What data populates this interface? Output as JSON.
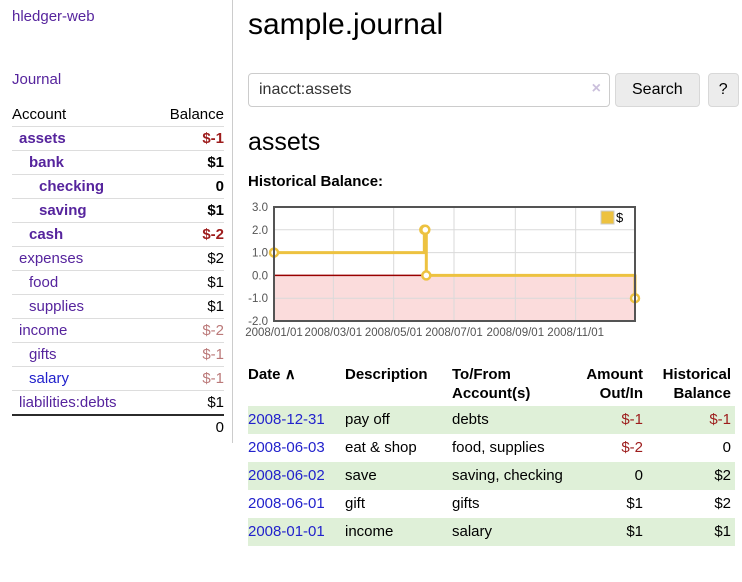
{
  "sidebar": {
    "app_title": "hledger-web",
    "journal_label": "Journal",
    "accounts_header": {
      "account": "Account",
      "balance": "Balance"
    },
    "accounts": [
      {
        "name": "assets",
        "balance": "$-1",
        "indent": 1,
        "bold": true,
        "link_color": "purple",
        "balance_color": "darkred"
      },
      {
        "name": "bank",
        "balance": "$1",
        "indent": 2,
        "bold": true,
        "link_color": "purple",
        "balance_color": "black"
      },
      {
        "name": "checking",
        "balance": "0",
        "indent": 3,
        "bold": true,
        "link_color": "purple",
        "balance_color": "black"
      },
      {
        "name": "saving",
        "balance": "$1",
        "indent": 3,
        "bold": true,
        "link_color": "purple",
        "balance_color": "black"
      },
      {
        "name": "cash",
        "balance": "$-2",
        "indent": 2,
        "bold": true,
        "link_color": "purple",
        "balance_color": "darkred"
      },
      {
        "name": "expenses",
        "balance": "$2",
        "indent": 1,
        "bold": false,
        "link_color": "purple",
        "balance_color": "black"
      },
      {
        "name": "food",
        "balance": "$1",
        "indent": 2,
        "bold": false,
        "link_color": "purple",
        "balance_color": "black"
      },
      {
        "name": "supplies",
        "balance": "$1",
        "indent": 2,
        "bold": false,
        "link_color": "purple",
        "balance_color": "black"
      },
      {
        "name": "income",
        "balance": "$-2",
        "indent": 1,
        "bold": false,
        "link_color": "purple",
        "balance_color": "rose"
      },
      {
        "name": "gifts",
        "balance": "$-1",
        "indent": 2,
        "bold": false,
        "link_color": "purple",
        "balance_color": "rose"
      },
      {
        "name": "salary",
        "balance": "$-1",
        "indent": 2,
        "bold": false,
        "link_color": "blue",
        "balance_color": "rose"
      },
      {
        "name": "liabilities:debts",
        "balance": "$1",
        "indent": 1,
        "bold": false,
        "link_color": "purple",
        "balance_color": "black"
      }
    ],
    "total": "0"
  },
  "main": {
    "title": "sample.journal",
    "search": {
      "value": "inacct:assets",
      "clear_icon": "×",
      "button_label": "Search",
      "help_label": "?"
    },
    "account_heading": "assets",
    "chart_label": "Historical Balance:"
  },
  "chart_data": {
    "type": "line",
    "title": "Historical Balance",
    "step": true,
    "series": [
      {
        "name": "$",
        "color": "#edc240",
        "points": [
          [
            "2008-01-01",
            1
          ],
          [
            "2008-06-01",
            2
          ],
          [
            "2008-06-02",
            2
          ],
          [
            "2008-06-03",
            0
          ],
          [
            "2008-12-31",
            -1
          ]
        ]
      }
    ],
    "xlim": [
      "2008-01-01",
      "2008-12-31"
    ],
    "ylim": [
      -2,
      3
    ],
    "x_ticks": [
      {
        "date": "2008-01-01",
        "label": "2008/01/01"
      },
      {
        "date": "2008-03-01",
        "label": "2008/03/01"
      },
      {
        "date": "2008-05-01",
        "label": "2008/05/01"
      },
      {
        "date": "2008-07-01",
        "label": "2008/07/01"
      },
      {
        "date": "2008-09-01",
        "label": "2008/09/01"
      },
      {
        "date": "2008-11-01",
        "label": "2008/11/01"
      }
    ],
    "y_ticks": [
      {
        "value": 3,
        "label": "3.0"
      },
      {
        "value": 2,
        "label": "2.0"
      },
      {
        "value": 1,
        "label": "1.0"
      },
      {
        "value": 0,
        "label": "0.0"
      },
      {
        "value": -1,
        "label": "-1.0"
      },
      {
        "value": -2,
        "label": "-2.0"
      }
    ],
    "legend": {
      "label": "$",
      "position": "top-right"
    },
    "grid_on": true,
    "negative_region_color": "#fbdcdc",
    "zero_line_color": "#990000",
    "grid_color": "#dadada",
    "border_color": "#545454",
    "axis_label_color": "#545454"
  },
  "register": {
    "headers": [
      {
        "label": "Date",
        "sort_icon": "∧"
      },
      {
        "label": "Description"
      },
      {
        "label": "To/From Account(s)"
      },
      {
        "label": "Amount Out/In"
      },
      {
        "label": "Historical Balance"
      }
    ],
    "rows": [
      {
        "date": "2008-12-31",
        "description": "pay off",
        "accounts": "debts",
        "amount": "$-1",
        "amount_color": "darkred",
        "balance": "$-1",
        "balance_color": "darkred"
      },
      {
        "date": "2008-06-03",
        "description": "eat & shop",
        "accounts": "food, supplies",
        "amount": "$-2",
        "amount_color": "darkred",
        "balance": "0",
        "balance_color": "black"
      },
      {
        "date": "2008-06-02",
        "description": "save",
        "accounts": "saving, checking",
        "amount": "0",
        "amount_color": "black",
        "balance": "$2",
        "balance_color": "black"
      },
      {
        "date": "2008-06-01",
        "description": "gift",
        "accounts": "gifts",
        "amount": "$1",
        "amount_color": "black",
        "balance": "$2",
        "balance_color": "black"
      },
      {
        "date": "2008-01-01",
        "description": "income",
        "accounts": "salary",
        "amount": "$1",
        "amount_color": "black",
        "balance": "$1",
        "balance_color": "black"
      }
    ]
  }
}
